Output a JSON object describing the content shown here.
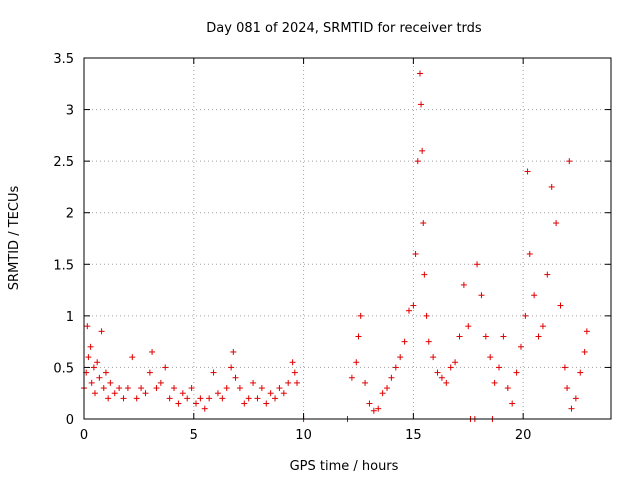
{
  "chart_data": {
    "type": "scatter",
    "title": "Day 081 of 2024, SRMTID for receiver trds",
    "xlabel": "GPS time / hours",
    "ylabel": "SRMTID / TECUs",
    "xlim": [
      0,
      24
    ],
    "ylim": [
      0,
      3.5
    ],
    "grid": true,
    "x_ticks": [
      0,
      5,
      10,
      15,
      20
    ],
    "x_tick_labels": [
      "0",
      "5",
      "10",
      "15",
      "20"
    ],
    "y_ticks": [
      0,
      0.5,
      1,
      1.5,
      2,
      2.5,
      3,
      3.5
    ],
    "y_tick_labels": [
      "0",
      "0.5",
      "1",
      "1.5",
      "2",
      "2.5",
      "3",
      "3.5"
    ],
    "marker": "+",
    "marker_color": "#e00000",
    "series": [
      {
        "name": "SRMTID",
        "points": [
          [
            0.0,
            0.3
          ],
          [
            0.1,
            0.45
          ],
          [
            0.15,
            0.9
          ],
          [
            0.2,
            0.6
          ],
          [
            0.3,
            0.7
          ],
          [
            0.35,
            0.35
          ],
          [
            0.45,
            0.5
          ],
          [
            0.5,
            0.25
          ],
          [
            0.6,
            0.55
          ],
          [
            0.7,
            0.4
          ],
          [
            0.8,
            0.85
          ],
          [
            0.9,
            0.3
          ],
          [
            1.0,
            0.45
          ],
          [
            1.1,
            0.2
          ],
          [
            1.2,
            0.35
          ],
          [
            1.4,
            0.25
          ],
          [
            1.6,
            0.3
          ],
          [
            1.8,
            0.2
          ],
          [
            2.0,
            0.3
          ],
          [
            2.2,
            0.6
          ],
          [
            2.4,
            0.2
          ],
          [
            2.6,
            0.3
          ],
          [
            2.8,
            0.25
          ],
          [
            3.0,
            0.45
          ],
          [
            3.1,
            0.65
          ],
          [
            3.3,
            0.3
          ],
          [
            3.5,
            0.35
          ],
          [
            3.7,
            0.5
          ],
          [
            3.9,
            0.2
          ],
          [
            4.1,
            0.3
          ],
          [
            4.3,
            0.15
          ],
          [
            4.5,
            0.25
          ],
          [
            4.7,
            0.2
          ],
          [
            4.9,
            0.3
          ],
          [
            5.1,
            0.15
          ],
          [
            5.3,
            0.2
          ],
          [
            5.5,
            0.1
          ],
          [
            5.7,
            0.2
          ],
          [
            5.9,
            0.45
          ],
          [
            6.1,
            0.25
          ],
          [
            6.3,
            0.2
          ],
          [
            6.5,
            0.3
          ],
          [
            6.7,
            0.5
          ],
          [
            6.8,
            0.65
          ],
          [
            6.9,
            0.4
          ],
          [
            7.1,
            0.3
          ],
          [
            7.3,
            0.15
          ],
          [
            7.5,
            0.2
          ],
          [
            7.7,
            0.35
          ],
          [
            7.9,
            0.2
          ],
          [
            8.1,
            0.3
          ],
          [
            8.3,
            0.15
          ],
          [
            8.5,
            0.25
          ],
          [
            8.7,
            0.2
          ],
          [
            8.9,
            0.3
          ],
          [
            9.1,
            0.25
          ],
          [
            9.3,
            0.35
          ],
          [
            9.5,
            0.55
          ],
          [
            9.6,
            0.45
          ],
          [
            9.7,
            0.35
          ],
          [
            10.0,
            0.0
          ],
          [
            12.0,
            0.0
          ],
          [
            12.2,
            0.4
          ],
          [
            12.4,
            0.55
          ],
          [
            12.5,
            0.8
          ],
          [
            12.6,
            1.0
          ],
          [
            12.8,
            0.35
          ],
          [
            13.0,
            0.15
          ],
          [
            13.2,
            0.08
          ],
          [
            13.4,
            0.1
          ],
          [
            13.6,
            0.25
          ],
          [
            13.8,
            0.3
          ],
          [
            14.0,
            0.4
          ],
          [
            14.2,
            0.5
          ],
          [
            14.4,
            0.6
          ],
          [
            14.6,
            0.75
          ],
          [
            14.8,
            1.05
          ],
          [
            15.0,
            1.1
          ],
          [
            15.1,
            1.6
          ],
          [
            15.2,
            2.5
          ],
          [
            15.3,
            3.35
          ],
          [
            15.35,
            3.05
          ],
          [
            15.4,
            2.6
          ],
          [
            15.45,
            1.9
          ],
          [
            15.5,
            1.4
          ],
          [
            15.6,
            1.0
          ],
          [
            15.7,
            0.75
          ],
          [
            15.9,
            0.6
          ],
          [
            16.1,
            0.45
          ],
          [
            16.3,
            0.4
          ],
          [
            16.5,
            0.35
          ],
          [
            16.7,
            0.5
          ],
          [
            16.9,
            0.55
          ],
          [
            17.1,
            0.8
          ],
          [
            17.3,
            1.3
          ],
          [
            17.5,
            0.9
          ],
          [
            17.6,
            0.0
          ],
          [
            17.8,
            0.0
          ],
          [
            17.9,
            1.5
          ],
          [
            18.1,
            1.2
          ],
          [
            18.3,
            0.8
          ],
          [
            18.5,
            0.6
          ],
          [
            18.6,
            0.0
          ],
          [
            18.7,
            0.35
          ],
          [
            18.9,
            0.5
          ],
          [
            19.1,
            0.8
          ],
          [
            19.3,
            0.3
          ],
          [
            19.5,
            0.15
          ],
          [
            19.7,
            0.45
          ],
          [
            19.9,
            0.7
          ],
          [
            20.1,
            1.0
          ],
          [
            20.2,
            2.4
          ],
          [
            20.3,
            1.6
          ],
          [
            20.5,
            1.2
          ],
          [
            20.7,
            0.8
          ],
          [
            20.9,
            0.9
          ],
          [
            21.1,
            1.4
          ],
          [
            21.3,
            2.25
          ],
          [
            21.5,
            1.9
          ],
          [
            21.7,
            1.1
          ],
          [
            21.9,
            0.5
          ],
          [
            22.0,
            0.3
          ],
          [
            22.1,
            2.5
          ],
          [
            22.2,
            0.1
          ],
          [
            22.4,
            0.2
          ],
          [
            22.6,
            0.45
          ],
          [
            22.8,
            0.65
          ],
          [
            22.9,
            0.85
          ]
        ]
      }
    ]
  }
}
